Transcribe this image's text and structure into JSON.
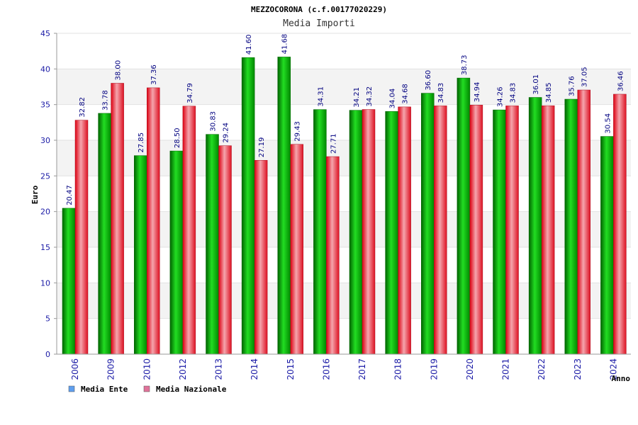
{
  "chart_data": {
    "type": "bar",
    "title": "MEZZOCORONA (c.f.00177020229)",
    "subtitle": "Media Importi",
    "xlabel": "Anno",
    "ylabel": "Euro",
    "ylim": [
      0,
      45
    ],
    "yticks": [
      "0",
      "5",
      "10",
      "15",
      "20",
      "25",
      "30",
      "35",
      "40",
      "45"
    ],
    "categories": [
      "2006",
      "2009",
      "2010",
      "2012",
      "2013",
      "2014",
      "2015",
      "2016",
      "2017",
      "2018",
      "2019",
      "2020",
      "2021",
      "2022",
      "2023",
      "2024"
    ],
    "series": [
      {
        "name": "Media Ente",
        "color": "#00aa00",
        "legend_color": "#5f9fef",
        "values": [
          20.47,
          33.78,
          27.85,
          28.5,
          30.83,
          41.6,
          41.68,
          34.31,
          34.21,
          34.04,
          36.6,
          38.73,
          34.26,
          36.01,
          35.76,
          30.54
        ],
        "labels": [
          "20.47",
          "33.78",
          "27.85",
          "28.50",
          "30.83",
          "41.60",
          "41.68",
          "34.31",
          "34.21",
          "34.04",
          "36.60",
          "38.73",
          "34.26",
          "36.01",
          "35.76",
          "30.54"
        ]
      },
      {
        "name": "Media Nazionale",
        "color": "#ee2233",
        "legend_color": "#e0739a",
        "values": [
          32.82,
          38.0,
          37.36,
          34.79,
          29.24,
          27.19,
          29.43,
          27.71,
          34.32,
          34.68,
          34.83,
          34.94,
          34.83,
          34.85,
          37.05,
          36.46
        ],
        "labels": [
          "32.82",
          "38.00",
          "37.36",
          "34.79",
          "29.24",
          "27.19",
          "29.43",
          "27.71",
          "34.32",
          "34.68",
          "34.83",
          "34.94",
          "34.83",
          "34.85",
          "37.05",
          "36.46"
        ]
      }
    ],
    "legend": "bottom-left",
    "grid": true
  }
}
